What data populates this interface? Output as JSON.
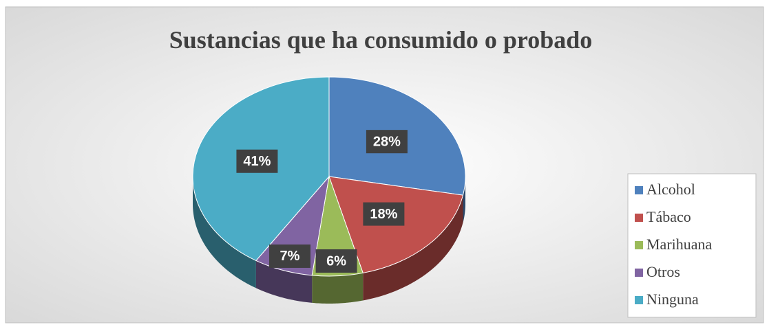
{
  "chart_data": {
    "type": "pie",
    "title": "Sustancias que ha consumido o probado",
    "categories": [
      "Alcohol",
      "Tábaco",
      "Marihuana",
      "Otros",
      "Ninguna"
    ],
    "values": [
      28,
      18,
      6,
      7,
      41
    ],
    "value_labels": [
      "28%",
      "18%",
      "6%",
      "7%",
      "41%"
    ],
    "colors": [
      "#4f81bd",
      "#c0504d",
      "#9bbb59",
      "#8064a2",
      "#4bacc6"
    ],
    "legend": "right"
  }
}
